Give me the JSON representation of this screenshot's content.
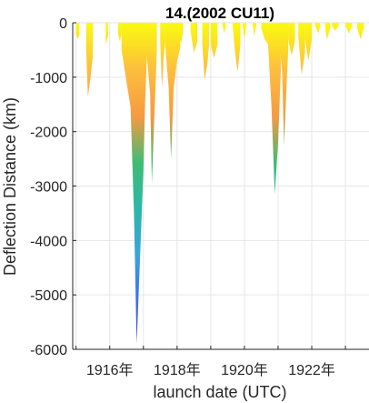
{
  "chart_data": {
    "type": "area",
    "title": "14.(2002 CU11)",
    "xlabel": "launch date (UTC)",
    "ylabel": "Deflection Distance (km)",
    "x_unit_suffix": "年",
    "x_tick_years": [
      1916,
      1918,
      1920,
      1922
    ],
    "xlim": [
      1914.9,
      1923.7
    ],
    "ylim": [
      -6000,
      0
    ],
    "y_ticks": [
      0,
      -1000,
      -2000,
      -3000,
      -4000,
      -5000,
      -6000
    ],
    "grid": true,
    "colormap": [
      "#F9FB0E",
      "#FDBE3D",
      "#F79A40",
      "#3FBC73",
      "#2BB7A9",
      "#3AA3DC",
      "#3A6CF0",
      "#3E3BD0"
    ],
    "series": [
      {
        "values": [
          [
            1915.0,
            -200
          ],
          [
            1915.05,
            -300
          ],
          [
            1915.1,
            -230
          ]
        ]
      },
      {
        "values": [
          [
            1915.3,
            -500
          ],
          [
            1915.35,
            -1350
          ],
          [
            1915.42,
            -1050
          ],
          [
            1915.5,
            -600
          ]
        ]
      },
      {
        "values": [
          [
            1915.88,
            -400
          ],
          [
            1915.95,
            -250
          ]
        ]
      },
      {
        "values": [
          [
            1916.25,
            -200
          ],
          [
            1916.3,
            -350
          ],
          [
            1916.35,
            -200
          ]
        ]
      },
      {
        "values": [
          [
            1916.35,
            -500
          ],
          [
            1916.5,
            -1100
          ],
          [
            1916.62,
            -1550
          ],
          [
            1916.72,
            -3500
          ],
          [
            1916.8,
            -5900
          ],
          [
            1916.9,
            -4300
          ],
          [
            1917.0,
            -2700
          ],
          [
            1917.05,
            -1500
          ],
          [
            1917.1,
            -700
          ]
        ]
      },
      {
        "values": [
          [
            1917.1,
            -600
          ],
          [
            1917.2,
            -1300
          ],
          [
            1917.25,
            -2950
          ],
          [
            1917.35,
            -1300
          ],
          [
            1917.4,
            -500
          ]
        ]
      },
      {
        "values": [
          [
            1917.5,
            -350
          ],
          [
            1917.55,
            -1200
          ],
          [
            1917.6,
            -650
          ],
          [
            1917.65,
            -350
          ]
        ]
      },
      {
        "values": [
          [
            1917.65,
            -450
          ],
          [
            1917.75,
            -1200
          ],
          [
            1917.82,
            -2500
          ],
          [
            1917.9,
            -1200
          ],
          [
            1918.0,
            -700
          ],
          [
            1918.1,
            -450
          ]
        ]
      },
      {
        "values": [
          [
            1918.05,
            -150
          ],
          [
            1918.12,
            -380
          ],
          [
            1918.18,
            -150
          ]
        ]
      },
      {
        "values": [
          [
            1918.4,
            -150
          ],
          [
            1918.5,
            -550
          ],
          [
            1918.6,
            -350
          ]
        ]
      },
      {
        "values": [
          [
            1918.75,
            -400
          ],
          [
            1918.82,
            -1050
          ],
          [
            1918.9,
            -750
          ],
          [
            1918.95,
            -400
          ]
        ]
      },
      {
        "values": [
          [
            1919.0,
            -400
          ],
          [
            1919.1,
            -650
          ],
          [
            1919.2,
            -400
          ]
        ]
      },
      {
        "values": [
          [
            1919.35,
            -50
          ],
          [
            1919.4,
            -200
          ],
          [
            1919.45,
            -50
          ]
        ]
      },
      {
        "values": [
          [
            1919.65,
            -50
          ],
          [
            1919.72,
            -550
          ],
          [
            1919.8,
            -900
          ],
          [
            1919.88,
            -400
          ]
        ]
      },
      {
        "values": [
          [
            1919.95,
            -50
          ],
          [
            1920.0,
            -300
          ],
          [
            1920.05,
            -100
          ]
        ]
      },
      {
        "values": [
          [
            1920.25,
            -50
          ],
          [
            1920.3,
            -250
          ],
          [
            1920.35,
            -50
          ]
        ]
      },
      {
        "values": [
          [
            1920.5,
            -100
          ],
          [
            1920.6,
            -300
          ],
          [
            1920.7,
            -400
          ]
        ]
      },
      {
        "values": [
          [
            1920.7,
            -400
          ],
          [
            1920.8,
            -1500
          ],
          [
            1920.9,
            -3150
          ],
          [
            1921.0,
            -2200
          ],
          [
            1921.08,
            -900
          ]
        ]
      },
      {
        "values": [
          [
            1921.05,
            -400
          ],
          [
            1921.12,
            -900
          ],
          [
            1921.18,
            -2250
          ],
          [
            1921.25,
            -1200
          ],
          [
            1921.3,
            -500
          ]
        ]
      },
      {
        "values": [
          [
            1921.3,
            -300
          ],
          [
            1921.4,
            -600
          ],
          [
            1921.5,
            -350
          ]
        ]
      },
      {
        "values": [
          [
            1921.6,
            -250
          ],
          [
            1921.7,
            -950
          ],
          [
            1921.8,
            -550
          ]
        ]
      },
      {
        "values": [
          [
            1921.8,
            -300
          ],
          [
            1921.9,
            -700
          ],
          [
            1922.0,
            -300
          ]
        ]
      },
      {
        "values": [
          [
            1922.1,
            -50
          ],
          [
            1922.2,
            -200
          ],
          [
            1922.25,
            -50
          ]
        ]
      },
      {
        "values": [
          [
            1922.4,
            -100
          ],
          [
            1922.45,
            -300
          ],
          [
            1922.55,
            -100
          ]
        ]
      },
      {
        "values": [
          [
            1922.6,
            -50
          ],
          [
            1922.7,
            -150
          ],
          [
            1922.8,
            -50
          ]
        ]
      },
      {
        "values": [
          [
            1923.0,
            -50
          ],
          [
            1923.1,
            -200
          ],
          [
            1923.2,
            -50
          ]
        ]
      },
      {
        "values": [
          [
            1923.35,
            -100
          ],
          [
            1923.45,
            -300
          ],
          [
            1923.55,
            -100
          ]
        ]
      }
    ]
  }
}
